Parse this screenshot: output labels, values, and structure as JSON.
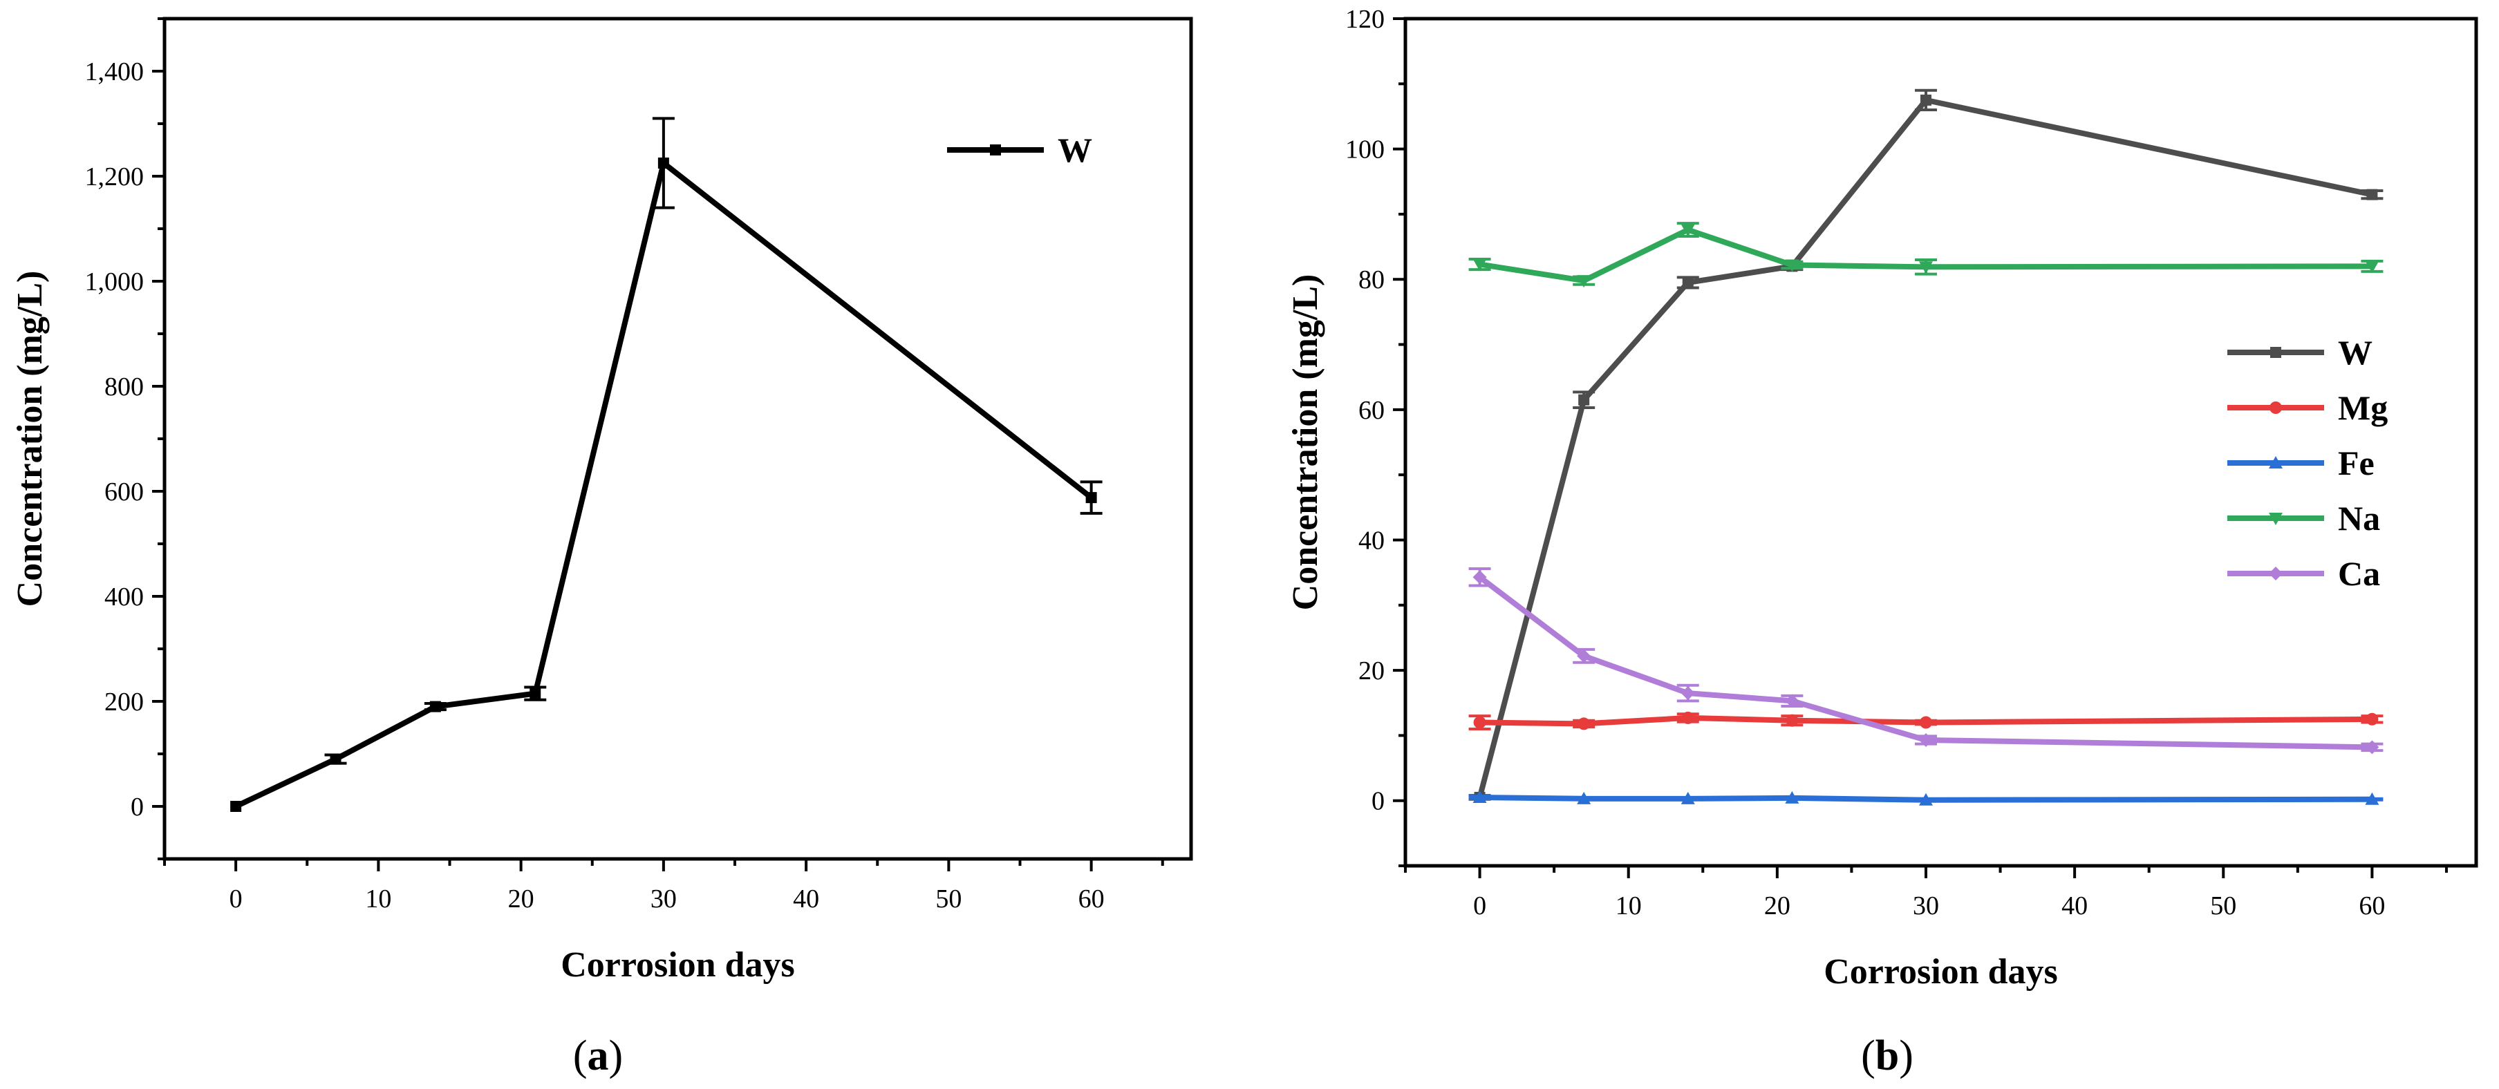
{
  "chart_data": [
    {
      "type": "line",
      "panel_label": "a",
      "xlabel": "Corrosion days",
      "ylabel": "Concentration (mg/L)",
      "xlim": [
        -5,
        67
      ],
      "ylim": [
        -100,
        1500
      ],
      "xticks": [
        0,
        10,
        20,
        30,
        40,
        50,
        60
      ],
      "yticks": [
        0,
        200,
        400,
        600,
        800,
        1000,
        1200,
        1400
      ],
      "ytick_labels": [
        "0",
        "200",
        "400",
        "600",
        "800",
        "1,000",
        "1,200",
        "1,400"
      ],
      "legend": "top-right",
      "grid": false,
      "x": [
        0,
        7,
        14,
        21,
        30,
        60
      ],
      "series": [
        {
          "name": "W",
          "color": "#000000",
          "marker": "square",
          "values": [
            0,
            90,
            190,
            215,
            1225,
            588
          ],
          "errors": [
            0,
            8,
            6,
            12,
            85,
            30
          ]
        }
      ]
    },
    {
      "type": "line",
      "panel_label": "b",
      "xlabel": "Corrosion days",
      "ylabel": "Concentration (mg/L)",
      "xlim": [
        -5,
        67
      ],
      "ylim": [
        -10,
        120
      ],
      "xticks": [
        0,
        10,
        20,
        30,
        40,
        50,
        60
      ],
      "yticks": [
        0,
        20,
        40,
        60,
        80,
        100,
        120
      ],
      "ytick_labels": [
        "0",
        "20",
        "40",
        "60",
        "80",
        "100",
        "120"
      ],
      "legend": "right",
      "grid": false,
      "x": [
        0,
        7,
        14,
        21,
        30,
        60
      ],
      "series": [
        {
          "name": "W",
          "color": "#4d4d4d",
          "marker": "square",
          "values": [
            0.5,
            61.5,
            79.5,
            82,
            107.5,
            93
          ],
          "errors": [
            0.3,
            1.2,
            0.8,
            0.5,
            1.5,
            0.6
          ]
        },
        {
          "name": "Mg",
          "color": "#e83b3b",
          "marker": "circle",
          "values": [
            12,
            11.8,
            12.7,
            12.3,
            12,
            12.5
          ],
          "errors": [
            1.0,
            0.5,
            0.6,
            0.7,
            0.3,
            0.5
          ]
        },
        {
          "name": "Fe",
          "color": "#2a6fd6",
          "marker": "triangle",
          "values": [
            0.5,
            0.3,
            0.3,
            0.4,
            0.1,
            0.2
          ],
          "errors": [
            0.2,
            0.1,
            0.1,
            0.1,
            0.1,
            0.1
          ]
        },
        {
          "name": "Na",
          "color": "#2fa85a",
          "marker": "tri-down",
          "values": [
            82.3,
            79.8,
            87.6,
            82.2,
            81.9,
            82
          ],
          "errors": [
            0.8,
            0.6,
            1.0,
            0.5,
            1.1,
            0.8
          ]
        },
        {
          "name": "Ca",
          "color": "#b07ed9",
          "marker": "diamond",
          "values": [
            34.3,
            22.2,
            16.5,
            15.3,
            9.3,
            8.2
          ],
          "errors": [
            1.3,
            1.0,
            1.2,
            0.8,
            0.6,
            0.5
          ]
        }
      ]
    }
  ]
}
